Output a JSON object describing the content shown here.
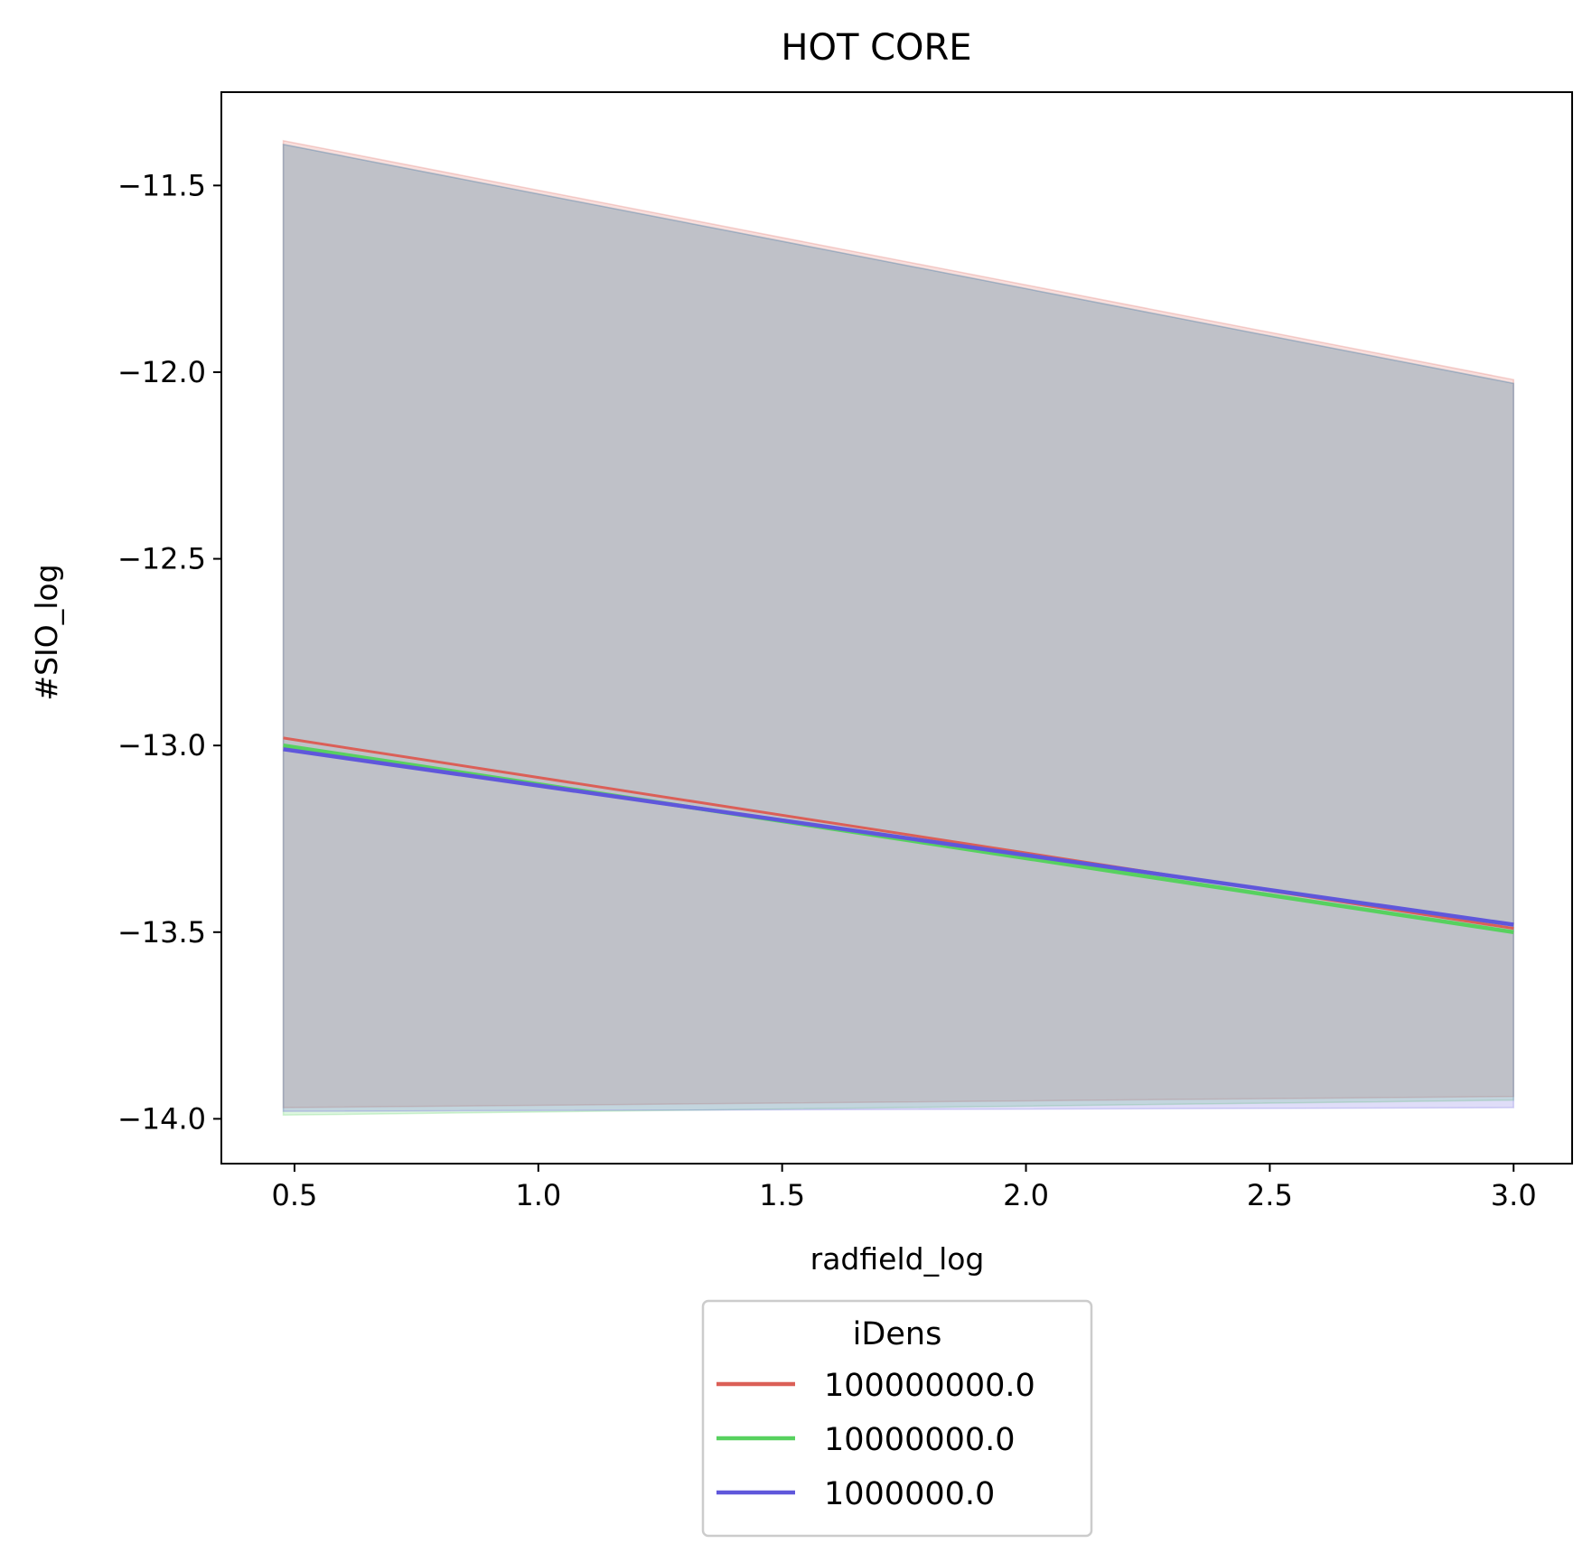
{
  "chart_data": {
    "type": "line",
    "title": "HOT CORE",
    "xlabel": "radfield_log",
    "ylabel": "#SIO_log",
    "xlim": [
      0.35,
      3.12
    ],
    "ylim": [
      -14.12,
      -11.25
    ],
    "xticks": [
      0.5,
      1.0,
      1.5,
      2.0,
      2.5,
      3.0
    ],
    "xtick_labels": [
      "0.5",
      "1.0",
      "1.5",
      "2.0",
      "2.5",
      "3.0"
    ],
    "yticks": [
      -11.5,
      -12.0,
      -12.5,
      -13.0,
      -13.5,
      -14.0
    ],
    "ytick_labels": [
      "−11.5",
      "−12.0",
      "−12.5",
      "−13.0",
      "−13.5",
      "−14.0"
    ],
    "grid": false,
    "legend": {
      "title": "iDens",
      "placement": "lower-center-outside"
    },
    "series": [
      {
        "name": "100000000.0",
        "color": "#db5f57",
        "x": [
          0.477,
          3.0
        ],
        "y": [
          -12.98,
          -13.49
        ],
        "band_upper": [
          -11.38,
          -12.02
        ],
        "band_lower": [
          -13.97,
          -13.94
        ]
      },
      {
        "name": "10000000.0",
        "color": "#57d15f",
        "x": [
          0.477,
          3.0
        ],
        "y": [
          -13.0,
          -13.5
        ],
        "band_upper": [
          -11.39,
          -12.03
        ],
        "band_lower": [
          -13.99,
          -13.95
        ]
      },
      {
        "name": "1000000.0",
        "color": "#5f57db",
        "x": [
          0.477,
          3.0
        ],
        "y": [
          -13.01,
          -13.48
        ],
        "band_upper": [
          -11.39,
          -12.03
        ],
        "band_lower": [
          -13.98,
          -13.97
        ]
      }
    ]
  }
}
